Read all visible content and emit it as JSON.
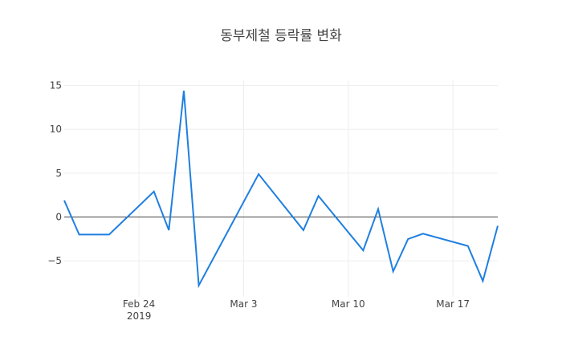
{
  "chart_data": {
    "type": "line",
    "title": "동부제철 등락률 변화",
    "xlabel": "",
    "ylabel": "",
    "x": [
      "2019-02-19",
      "2019-02-20",
      "2019-02-22",
      "2019-02-25",
      "2019-02-26",
      "2019-02-27",
      "2019-02-28",
      "2019-03-04",
      "2019-03-07",
      "2019-03-08",
      "2019-03-11",
      "2019-03-12",
      "2019-03-13",
      "2019-03-14",
      "2019-03-15",
      "2019-03-18",
      "2019-03-19",
      "2019-03-20"
    ],
    "series": [
      {
        "name": "등락률",
        "color": "#1f7fe0",
        "values": [
          1.9,
          -2.0,
          -2.0,
          2.9,
          -1.5,
          14.4,
          -7.8,
          4.9,
          -1.5,
          2.4,
          -3.8,
          0.9,
          -6.2,
          -2.5,
          -1.9,
          -3.3,
          -7.3,
          -1.0
        ]
      }
    ],
    "x_ticks": [
      {
        "date": "2019-02-24",
        "label": "Feb 24",
        "sublabel": "2019"
      },
      {
        "date": "2019-03-03",
        "label": "Mar 3"
      },
      {
        "date": "2019-03-10",
        "label": "Mar 10"
      },
      {
        "date": "2019-03-17",
        "label": "Mar 17"
      }
    ],
    "y_ticks": [
      15,
      10,
      5,
      0,
      -5
    ],
    "y_tick_labels": [
      "15",
      "10",
      "5",
      "0",
      "−5"
    ],
    "ylim": [
      -9.1,
      15.6
    ],
    "xlim": [
      "2019-02-19",
      "2019-03-20"
    ],
    "grid": true,
    "zero_line": true,
    "legend": null
  }
}
